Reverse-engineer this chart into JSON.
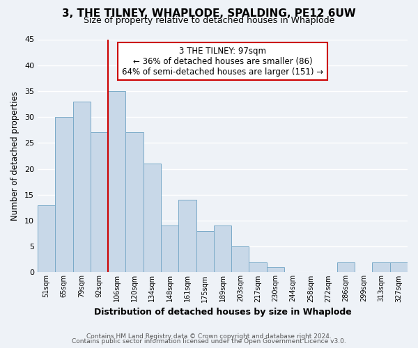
{
  "title": "3, THE TILNEY, WHAPLODE, SPALDING, PE12 6UW",
  "subtitle": "Size of property relative to detached houses in Whaplode",
  "xlabel": "Distribution of detached houses by size in Whaplode",
  "ylabel": "Number of detached properties",
  "categories": [
    "51sqm",
    "65sqm",
    "79sqm",
    "92sqm",
    "106sqm",
    "120sqm",
    "134sqm",
    "148sqm",
    "161sqm",
    "175sqm",
    "189sqm",
    "203sqm",
    "217sqm",
    "230sqm",
    "244sqm",
    "258sqm",
    "272sqm",
    "286sqm",
    "299sqm",
    "313sqm",
    "327sqm"
  ],
  "values": [
    13,
    30,
    33,
    27,
    35,
    27,
    21,
    9,
    14,
    8,
    9,
    5,
    2,
    1,
    0,
    0,
    0,
    2,
    0,
    2,
    2
  ],
  "bar_color": "#c8d8e8",
  "bar_edge_color": "#7aaac8",
  "ylim": [
    0,
    45
  ],
  "yticks": [
    0,
    5,
    10,
    15,
    20,
    25,
    30,
    35,
    40,
    45
  ],
  "annotation_title": "3 THE TILNEY: 97sqm",
  "annotation_line1": "← 36% of detached houses are smaller (86)",
  "annotation_line2": "64% of semi-detached houses are larger (151) →",
  "annotation_box_color": "#ffffff",
  "annotation_box_edge": "#cc0000",
  "property_line_color": "#cc0000",
  "footer1": "Contains HM Land Registry data © Crown copyright and database right 2024.",
  "footer2": "Contains public sector information licensed under the Open Government Licence v3.0.",
  "background_color": "#eef2f7",
  "grid_color": "#ffffff"
}
